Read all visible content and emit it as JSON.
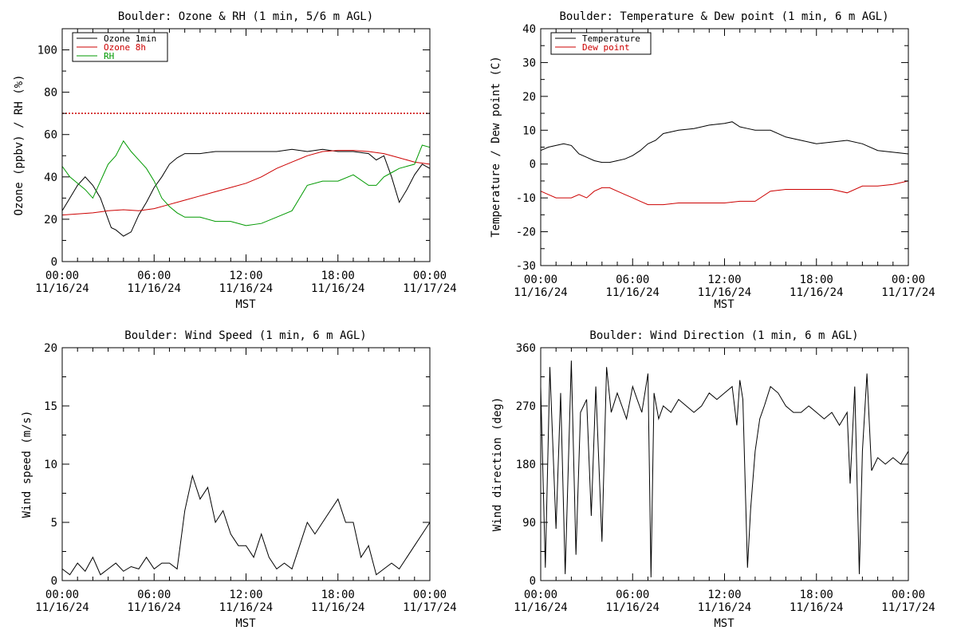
{
  "chart_data": [
    {
      "type": "line",
      "title": "Boulder: Ozone & RH (1 min, 5/6 m AGL)",
      "xlabel": "MST",
      "ylabel": "Ozone (ppbv) / RH (%)",
      "x_ticks": [
        {
          "time": "00:00",
          "date": "11/16/24"
        },
        {
          "time": "06:00",
          "date": "11/16/24"
        },
        {
          "time": "12:00",
          "date": "11/16/24"
        },
        {
          "time": "18:00",
          "date": "11/16/24"
        },
        {
          "time": "00:00",
          "date": "11/17/24"
        }
      ],
      "xlim_hours": [
        0,
        24
      ],
      "ylim": [
        0,
        110
      ],
      "y_ticks": [
        0,
        20,
        40,
        60,
        80,
        100
      ],
      "legend": "top-left",
      "reference_line": {
        "value": 70,
        "color": "#cc0000",
        "style": "dotted"
      },
      "series": [
        {
          "name": "Ozone 1min",
          "color": "#000000",
          "x": [
            0,
            0.5,
            1,
            1.5,
            2,
            2.5,
            3,
            3.2,
            3.5,
            4,
            4.5,
            5,
            5.5,
            6,
            6.5,
            7,
            7.5,
            8,
            9,
            10,
            11,
            12,
            13,
            14,
            15,
            16,
            17,
            18,
            19,
            20,
            20.5,
            21,
            21.5,
            22,
            22.5,
            23,
            23.5,
            24
          ],
          "y": [
            24,
            30,
            36,
            40,
            36,
            30,
            20,
            16,
            15,
            12,
            14,
            22,
            28,
            35,
            40,
            46,
            49,
            51,
            51,
            52,
            52,
            52,
            52,
            52,
            53,
            52,
            53,
            52,
            52,
            51,
            48,
            50,
            40,
            28,
            34,
            41,
            46,
            44
          ]
        },
        {
          "name": "Ozone 8h",
          "color": "#cc0000",
          "x": [
            0,
            1,
            2,
            3,
            4,
            5,
            6,
            7,
            8,
            9,
            10,
            11,
            12,
            13,
            14,
            15,
            16,
            17,
            18,
            19,
            20,
            21,
            22,
            23,
            24
          ],
          "y": [
            22,
            22.5,
            23,
            24,
            24.5,
            24,
            25,
            27,
            29,
            31,
            33,
            35,
            37,
            40,
            44,
            47,
            50,
            52,
            52.5,
            52.5,
            52,
            51,
            49,
            47,
            46
          ]
        },
        {
          "name": "RH",
          "color": "#009900",
          "x": [
            0,
            0.5,
            1,
            1.5,
            2,
            2.5,
            3,
            3.5,
            4,
            4.5,
            5,
            5.5,
            6,
            6.5,
            7,
            7.5,
            8,
            9,
            10,
            11,
            12,
            13,
            14,
            15,
            15.5,
            16,
            17,
            18,
            19,
            20,
            20.5,
            21,
            21.5,
            22,
            22.5,
            23,
            23.5,
            24
          ],
          "y": [
            45,
            40,
            37,
            34,
            30,
            38,
            46,
            50,
            57,
            52,
            48,
            44,
            38,
            30,
            26,
            23,
            21,
            21,
            19,
            19,
            17,
            18,
            21,
            24,
            30,
            36,
            38,
            38,
            41,
            36,
            36,
            40,
            42,
            44,
            45,
            46,
            55,
            54
          ]
        }
      ]
    },
    {
      "type": "line",
      "title": "Boulder: Temperature & Dew point (1 min, 6 m AGL)",
      "xlabel": "MST",
      "ylabel": "Temperature / Dew point (C)",
      "x_ticks": [
        {
          "time": "00:00",
          "date": "11/16/24"
        },
        {
          "time": "06:00",
          "date": "11/16/24"
        },
        {
          "time": "12:00",
          "date": "11/16/24"
        },
        {
          "time": "18:00",
          "date": "11/16/24"
        },
        {
          "time": "00:00",
          "date": "11/17/24"
        }
      ],
      "xlim_hours": [
        0,
        24
      ],
      "ylim": [
        -30,
        40
      ],
      "y_ticks": [
        -30,
        -20,
        -10,
        0,
        10,
        20,
        30,
        40
      ],
      "legend": "top-left",
      "series": [
        {
          "name": "Temperature",
          "color": "#000000",
          "x": [
            0,
            0.5,
            1,
            1.5,
            2,
            2.5,
            3,
            3.5,
            4,
            4.5,
            5,
            5.5,
            6,
            6.5,
            7,
            7.5,
            8,
            9,
            10,
            11,
            12,
            12.5,
            13,
            13.5,
            14,
            15,
            16,
            17,
            18,
            19,
            20,
            21,
            22,
            23,
            24
          ],
          "y": [
            4,
            5,
            5.5,
            6,
            5.5,
            3,
            2,
            1,
            0.5,
            0.5,
            1,
            1.5,
            2.5,
            4,
            6,
            7,
            9,
            10,
            10.5,
            11.5,
            12,
            12.5,
            11,
            10.5,
            10,
            10,
            8,
            7,
            6,
            6.5,
            7,
            6,
            4,
            3.5,
            3
          ]
        },
        {
          "name": "Dew point",
          "color": "#cc0000",
          "x": [
            0,
            0.5,
            1,
            1.5,
            2,
            2.5,
            3,
            3.5,
            4,
            4.5,
            5,
            5.5,
            6,
            6.5,
            7,
            8,
            9,
            10,
            11,
            12,
            13,
            14,
            15,
            16,
            17,
            18,
            19,
            20,
            21,
            22,
            23,
            24
          ],
          "y": [
            -8,
            -9,
            -10,
            -10,
            -10,
            -9,
            -10,
            -8,
            -7,
            -7,
            -8,
            -9,
            -10,
            -11,
            -12,
            -12,
            -11.5,
            -11.5,
            -11.5,
            -11.5,
            -11,
            -11,
            -8,
            -7.5,
            -7.5,
            -7.5,
            -7.5,
            -8.5,
            -6.5,
            -6.5,
            -6,
            -5
          ]
        }
      ]
    },
    {
      "type": "line",
      "title": "Boulder: Wind Speed (1 min, 6 m AGL)",
      "xlabel": "MST",
      "ylabel": "Wind speed (m/s)",
      "x_ticks": [
        {
          "time": "00:00",
          "date": "11/16/24"
        },
        {
          "time": "06:00",
          "date": "11/16/24"
        },
        {
          "time": "12:00",
          "date": "11/16/24"
        },
        {
          "time": "18:00",
          "date": "11/16/24"
        },
        {
          "time": "00:00",
          "date": "11/17/24"
        }
      ],
      "xlim_hours": [
        0,
        24
      ],
      "ylim": [
        0,
        20
      ],
      "y_ticks": [
        0,
        5,
        10,
        15,
        20
      ],
      "series": [
        {
          "name": "",
          "color": "#000000",
          "x": [
            0,
            0.5,
            1,
            1.5,
            2,
            2.5,
            3,
            3.5,
            4,
            4.5,
            5,
            5.5,
            6,
            6.5,
            7,
            7.5,
            8,
            8.5,
            9,
            9.5,
            10,
            10.5,
            11,
            11.5,
            12,
            12.5,
            13,
            13.5,
            14,
            14.5,
            15,
            15.5,
            16,
            16.5,
            17,
            17.5,
            18,
            18.5,
            19,
            19.5,
            20,
            20.5,
            21,
            21.5,
            22,
            22.5,
            23,
            23.5,
            24
          ],
          "y": [
            1,
            0.5,
            1.5,
            0.8,
            2,
            0.5,
            1,
            1.5,
            0.8,
            1.2,
            1,
            2,
            1,
            1.5,
            1.5,
            1,
            6,
            9,
            7,
            8,
            5,
            6,
            4,
            3,
            3,
            2,
            4,
            2,
            1,
            1.5,
            1,
            3,
            5,
            4,
            5,
            6,
            7,
            5,
            5,
            2,
            3,
            0.5,
            1,
            1.5,
            1,
            2,
            3,
            4,
            5
          ]
        }
      ]
    },
    {
      "type": "line",
      "title": "Boulder: Wind Direction (1 min, 6 m AGL)",
      "xlabel": "MST",
      "ylabel": "Wind direction (deg)",
      "x_ticks": [
        {
          "time": "00:00",
          "date": "11/16/24"
        },
        {
          "time": "06:00",
          "date": "11/16/24"
        },
        {
          "time": "12:00",
          "date": "11/16/24"
        },
        {
          "time": "18:00",
          "date": "11/16/24"
        },
        {
          "time": "00:00",
          "date": "11/17/24"
        }
      ],
      "xlim_hours": [
        0,
        24
      ],
      "ylim": [
        0,
        360
      ],
      "y_ticks": [
        0,
        90,
        180,
        270,
        360
      ],
      "series": [
        {
          "name": "",
          "color": "#000000",
          "x": [
            0,
            0.3,
            0.6,
            1,
            1.3,
            1.6,
            2,
            2.3,
            2.6,
            3,
            3.3,
            3.6,
            4,
            4.3,
            4.6,
            5,
            5.3,
            5.6,
            6,
            6.3,
            6.6,
            7,
            7.2,
            7.4,
            7.7,
            8,
            8.5,
            9,
            9.5,
            10,
            10.5,
            11,
            11.5,
            12,
            12.5,
            12.8,
            13,
            13.2,
            13.5,
            13.7,
            14,
            14.3,
            14.6,
            15,
            15.5,
            16,
            16.5,
            17,
            17.5,
            18,
            18.5,
            19,
            19.5,
            20,
            20.2,
            20.5,
            20.8,
            21,
            21.3,
            21.6,
            22,
            22.5,
            23,
            23.5,
            24
          ],
          "y": [
            300,
            20,
            330,
            80,
            290,
            10,
            340,
            40,
            260,
            280,
            100,
            300,
            60,
            330,
            260,
            290,
            270,
            250,
            300,
            280,
            260,
            320,
            5,
            290,
            250,
            270,
            260,
            280,
            270,
            260,
            270,
            290,
            280,
            290,
            300,
            240,
            310,
            280,
            20,
            110,
            200,
            250,
            270,
            300,
            290,
            270,
            260,
            260,
            270,
            260,
            250,
            260,
            240,
            260,
            150,
            300,
            10,
            200,
            320,
            170,
            190,
            180,
            190,
            180,
            200
          ]
        }
      ]
    }
  ]
}
